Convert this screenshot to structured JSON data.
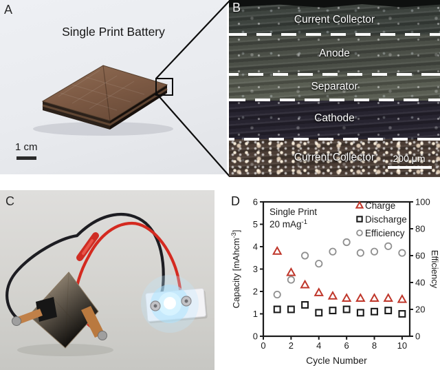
{
  "panels": {
    "a": {
      "label": "A",
      "title": "Single Print Battery",
      "scale_bar_label": "1 cm"
    },
    "b": {
      "label": "B",
      "layer_labels": [
        "Current Collector",
        "Anode",
        "Separator",
        "Cathode",
        "Current Collector"
      ],
      "scale_bar_label": "200 μm"
    },
    "c": {
      "label": "C"
    },
    "d": {
      "label": "D"
    }
  },
  "chart_data": {
    "type": "scatter",
    "x": [
      1,
      2,
      3,
      4,
      5,
      6,
      7,
      8,
      9,
      10
    ],
    "series": [
      {
        "name": "Charge",
        "marker": "triangle",
        "color": "#bf362a",
        "axis": "left",
        "values": [
          3.8,
          2.85,
          2.3,
          1.95,
          1.8,
          1.7,
          1.7,
          1.7,
          1.7,
          1.65
        ]
      },
      {
        "name": "Discharge",
        "marker": "square",
        "color": "#1a1a1a",
        "axis": "left",
        "values": [
          1.2,
          1.2,
          1.4,
          1.05,
          1.15,
          1.2,
          1.05,
          1.1,
          1.15,
          1.0
        ]
      },
      {
        "name": "Efficiency",
        "marker": "circle",
        "color": "#8f8f8f",
        "axis": "right",
        "values": [
          31,
          42,
          60,
          54,
          63,
          70,
          62,
          63,
          67,
          62
        ]
      }
    ],
    "annotation": {
      "line1": "Single Print",
      "line2_pre": "20 mAg",
      "line2_sup": "-1"
    },
    "xlabel": "Cycle Number",
    "ylabel_pre": "Capacity [mAhcm",
    "ylabel_sup": "-3",
    "ylabel_post": "]",
    "y2label": "Efficiency",
    "xlim": [
      0,
      10.55
    ],
    "ylim": [
      0,
      6
    ],
    "y2lim": [
      0,
      100
    ],
    "xticks": [
      0,
      2,
      4,
      6,
      8,
      10
    ],
    "yticks": [
      0,
      1,
      2,
      3,
      4,
      5,
      6
    ],
    "y2ticks": [
      0,
      20,
      40,
      60,
      80,
      100
    ],
    "legend_position": "top-right",
    "grid": false,
    "axis_color": "#1a1a1a"
  }
}
